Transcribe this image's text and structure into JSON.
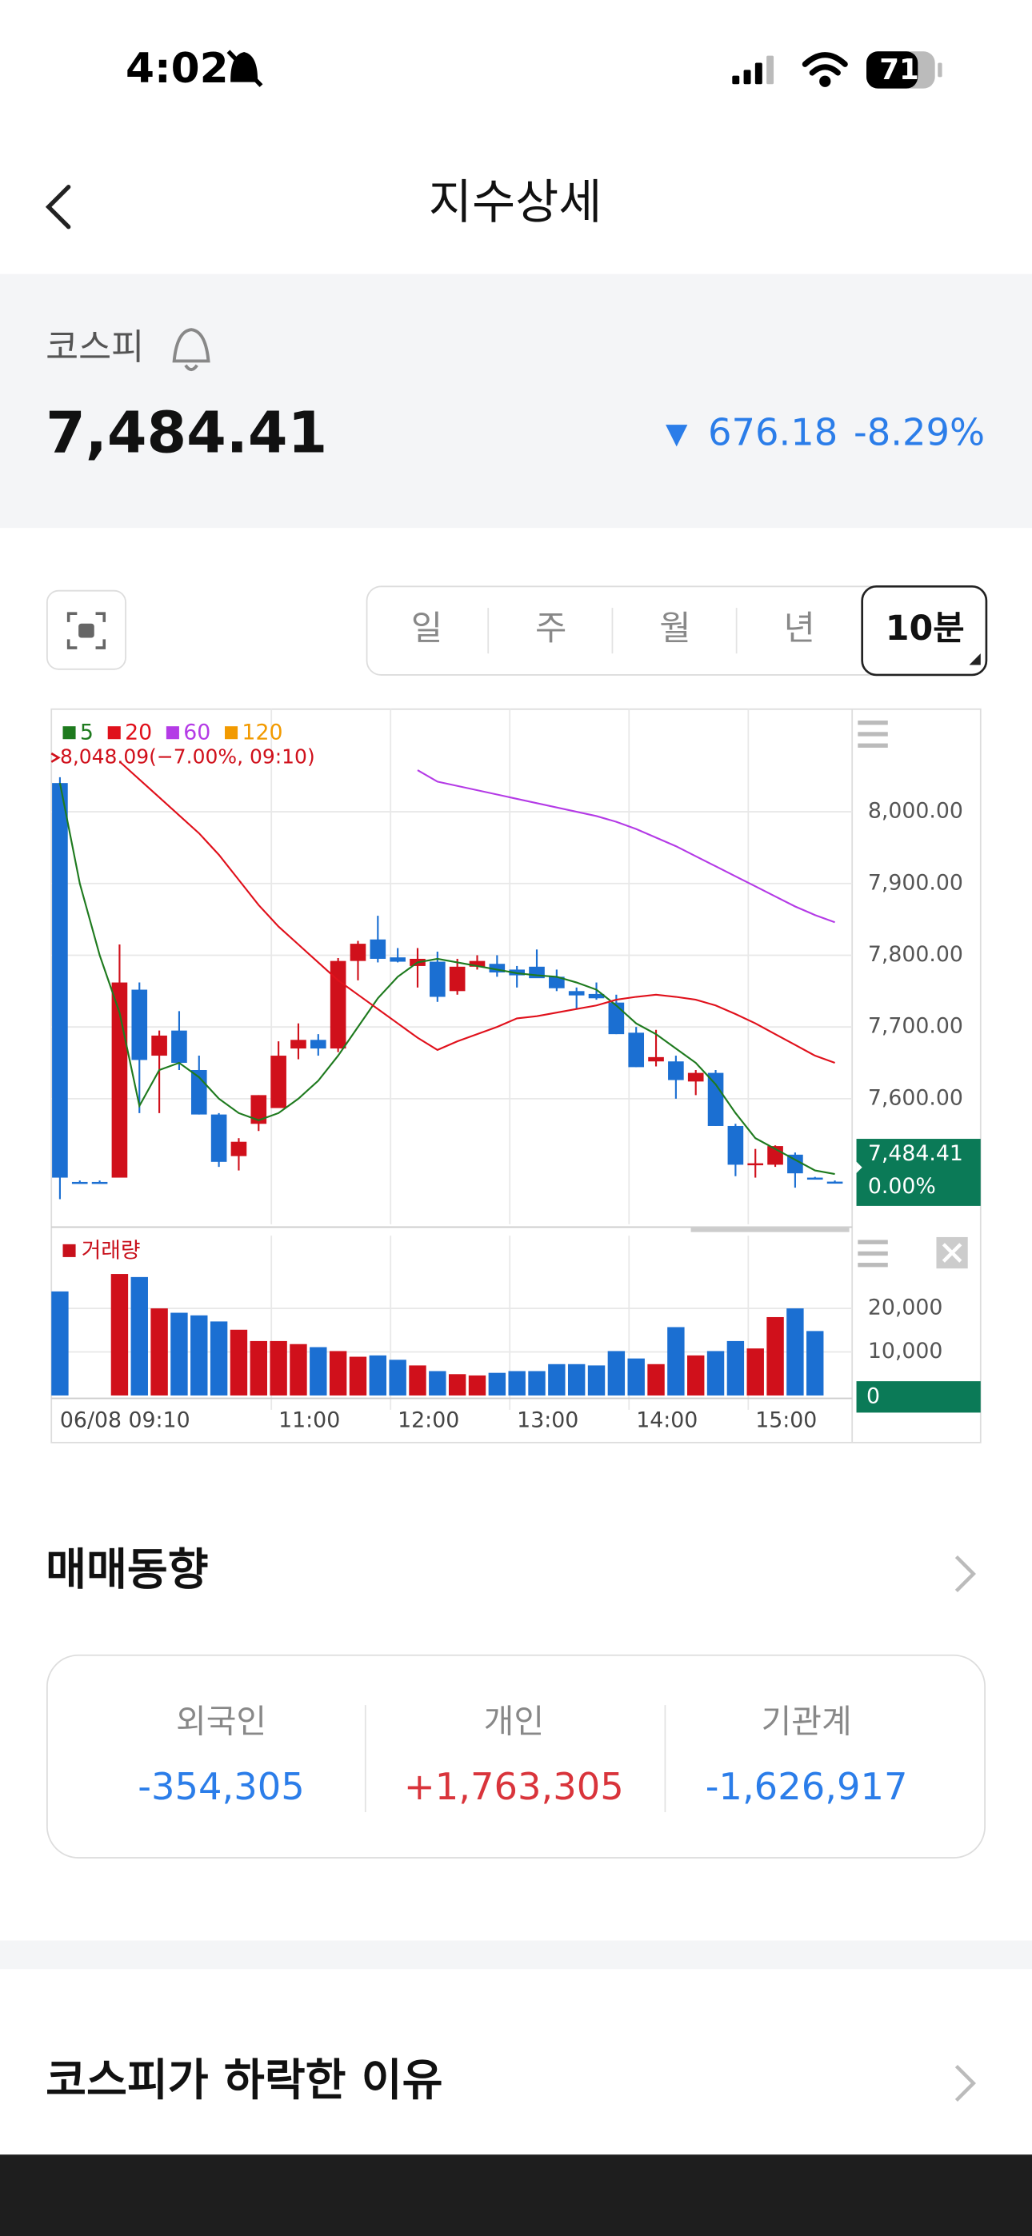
{
  "status_bar": {
    "time": "4:02",
    "battery": "71"
  },
  "header": {
    "title": "지수상세"
  },
  "index": {
    "name": "코스피",
    "value": "7,484.41",
    "change": "676.18",
    "change_rate": "-8.29%",
    "color": "#2b7de9"
  },
  "period_tabs": {
    "items": [
      "일",
      "주",
      "월",
      "년",
      "10분"
    ],
    "selected": 4
  },
  "chart_data": [
    {
      "type": "candlestick",
      "annotation": "8,048.09(−7.00%, 09:10)",
      "annotation_color": "#d0101b",
      "up_color": "#d0101b",
      "down_color": "#1b6fd2",
      "candles": {
        "open": [
          8040,
          7484,
          7484,
          7490,
          7752,
          7660,
          7695,
          7640,
          7578,
          7520,
          7565,
          7587,
          7670,
          7682,
          7670,
          7792,
          7822,
          7797,
          7785,
          7791,
          7750,
          7784,
          7788,
          7780,
          7784,
          7770,
          7750,
          7746,
          7734,
          7692,
          7652,
          7652,
          7624,
          7636,
          7562,
          7508,
          7508,
          7522,
          7490,
          7484.41
        ],
        "high": [
          8048.09,
          7486,
          7486,
          7815,
          7762,
          7695,
          7722,
          7660,
          7580,
          7545,
          7605,
          7680,
          7705,
          7690,
          7796,
          7820,
          7855,
          7810,
          7810,
          7805,
          7795,
          7800,
          7800,
          7785,
          7808,
          7780,
          7755,
          7762,
          7745,
          7700,
          7696,
          7660,
          7640,
          7640,
          7565,
          7530,
          7535,
          7525,
          7491,
          7486
        ],
        "low": [
          7460,
          7482,
          7482,
          7490,
          7580,
          7580,
          7640,
          7578,
          7505,
          7500,
          7555,
          7587,
          7655,
          7660,
          7665,
          7765,
          7790,
          7790,
          7755,
          7735,
          7745,
          7780,
          7770,
          7755,
          7770,
          7750,
          7725,
          7738,
          7690,
          7644,
          7645,
          7600,
          7605,
          7562,
          7492,
          7490,
          7505,
          7476,
          7488,
          7482
        ],
        "close": [
          7490,
          7484,
          7484,
          7762,
          7654,
          7688,
          7650,
          7578,
          7512,
          7540,
          7605,
          7660,
          7682,
          7670,
          7792,
          7816,
          7795,
          7791,
          7795,
          7742,
          7784,
          7792,
          7776,
          7772,
          7768,
          7754,
          7744,
          7740,
          7690,
          7644,
          7658,
          7626,
          7636,
          7562,
          7508,
          7510,
          7534,
          7496,
          7490,
          7484.41
        ]
      },
      "series": [
        {
          "name": "5",
          "color": "#1e7a1e",
          "values": [
            8040,
            7900,
            7800,
            7720,
            7590,
            7640,
            7650,
            7630,
            7600,
            7580,
            7570,
            7580,
            7600,
            7625,
            7660,
            7700,
            7740,
            7770,
            7790,
            7795,
            7790,
            7785,
            7780,
            7775,
            7772,
            7770,
            7762,
            7752,
            7730,
            7705,
            7690,
            7670,
            7650,
            7620,
            7580,
            7545,
            7530,
            7515,
            7500,
            7495
          ]
        },
        {
          "name": "20",
          "color": "#e0101b",
          "values": [
            null,
            null,
            null,
            8070,
            8045,
            8020,
            7995,
            7970,
            7940,
            7905,
            7870,
            7840,
            7815,
            7790,
            7765,
            7745,
            7725,
            7705,
            7685,
            7668,
            7680,
            7690,
            7700,
            7712,
            7715,
            7720,
            7725,
            7730,
            7738,
            7742,
            7745,
            7742,
            7738,
            7730,
            7718,
            7705,
            7690,
            7675,
            7660,
            7650
          ]
        },
        {
          "name": "60",
          "color": "#b43be6",
          "values": [
            null,
            null,
            null,
            null,
            null,
            null,
            null,
            null,
            null,
            null,
            null,
            null,
            null,
            null,
            null,
            null,
            null,
            null,
            8058,
            8042,
            8036,
            8030,
            8024,
            8018,
            8012,
            8006,
            8000,
            7994,
            7986,
            7976,
            7964,
            7952,
            7938,
            7924,
            7910,
            7896,
            7882,
            7868,
            7856,
            7846
          ]
        },
        {
          "name": "120",
          "color": "#f29a00",
          "values": [
            null,
            null,
            null,
            null,
            null,
            null,
            null,
            null,
            null,
            null,
            null,
            null,
            null,
            null,
            null,
            null,
            null,
            null,
            null,
            null,
            null,
            null,
            null,
            null,
            null,
            null,
            null,
            null,
            null,
            null,
            null,
            null,
            null,
            null,
            null,
            null,
            null,
            null,
            null,
            null
          ]
        }
      ],
      "xlim": [
        -0.43,
        39.87
      ],
      "ylim": [
        7425,
        8143
      ],
      "yticks": [
        {
          "value": 8000,
          "label": "8,000.00"
        },
        {
          "value": 7900,
          "label": "7,900.00"
        },
        {
          "value": 7800,
          "label": "7,800.00"
        },
        {
          "value": 7700,
          "label": "7,700.00"
        },
        {
          "value": 7600,
          "label": "7,600.00"
        }
      ],
      "grid": true,
      "last_label": [
        "7,484.41",
        "0.00%"
      ],
      "last_label_color": "#0b7a57"
    },
    {
      "type": "bar",
      "title": "거래량",
      "title_color": "#c8101b",
      "values": [
        23900,
        0,
        0,
        27900,
        27200,
        20000,
        19000,
        18400,
        17000,
        15100,
        12500,
        12500,
        11800,
        11100,
        10200,
        8900,
        9200,
        8200,
        6900,
        5600,
        4900,
        4600,
        5200,
        5600,
        5600,
        7200,
        7200,
        6900,
        10200,
        8500,
        7200,
        15700,
        9200,
        10200,
        12500,
        10800,
        18000,
        20000,
        14800,
        0
      ],
      "xlim": [
        -0.43,
        39.87
      ],
      "xticks": [
        {
          "value": 0,
          "label": "06/08 09:10"
        },
        {
          "value": 11,
          "label": "11:00"
        },
        {
          "value": 17,
          "label": "12:00"
        },
        {
          "value": 23,
          "label": "13:00"
        },
        {
          "value": 29,
          "label": "14:00"
        },
        {
          "value": 35,
          "label": "15:00"
        }
      ],
      "ylim": [
        0,
        36700
      ],
      "yticks": [
        {
          "value": 20000,
          "label": "20,000"
        },
        {
          "value": 10000,
          "label": "10,000"
        }
      ],
      "grid": true,
      "last_label": "0",
      "last_label_color": "#0b7a57"
    }
  ],
  "trading_trend": {
    "title": "매매동향",
    "items": [
      {
        "label": "외국인",
        "value": "-354,305",
        "color": "#2b7de9"
      },
      {
        "label": "개인",
        "value": "+1,763,305",
        "color": "#d9343b"
      },
      {
        "label": "기관계",
        "value": "-1,626,917",
        "color": "#2b7de9"
      }
    ]
  },
  "reason": {
    "title": "코스피가 하락한 이유"
  }
}
